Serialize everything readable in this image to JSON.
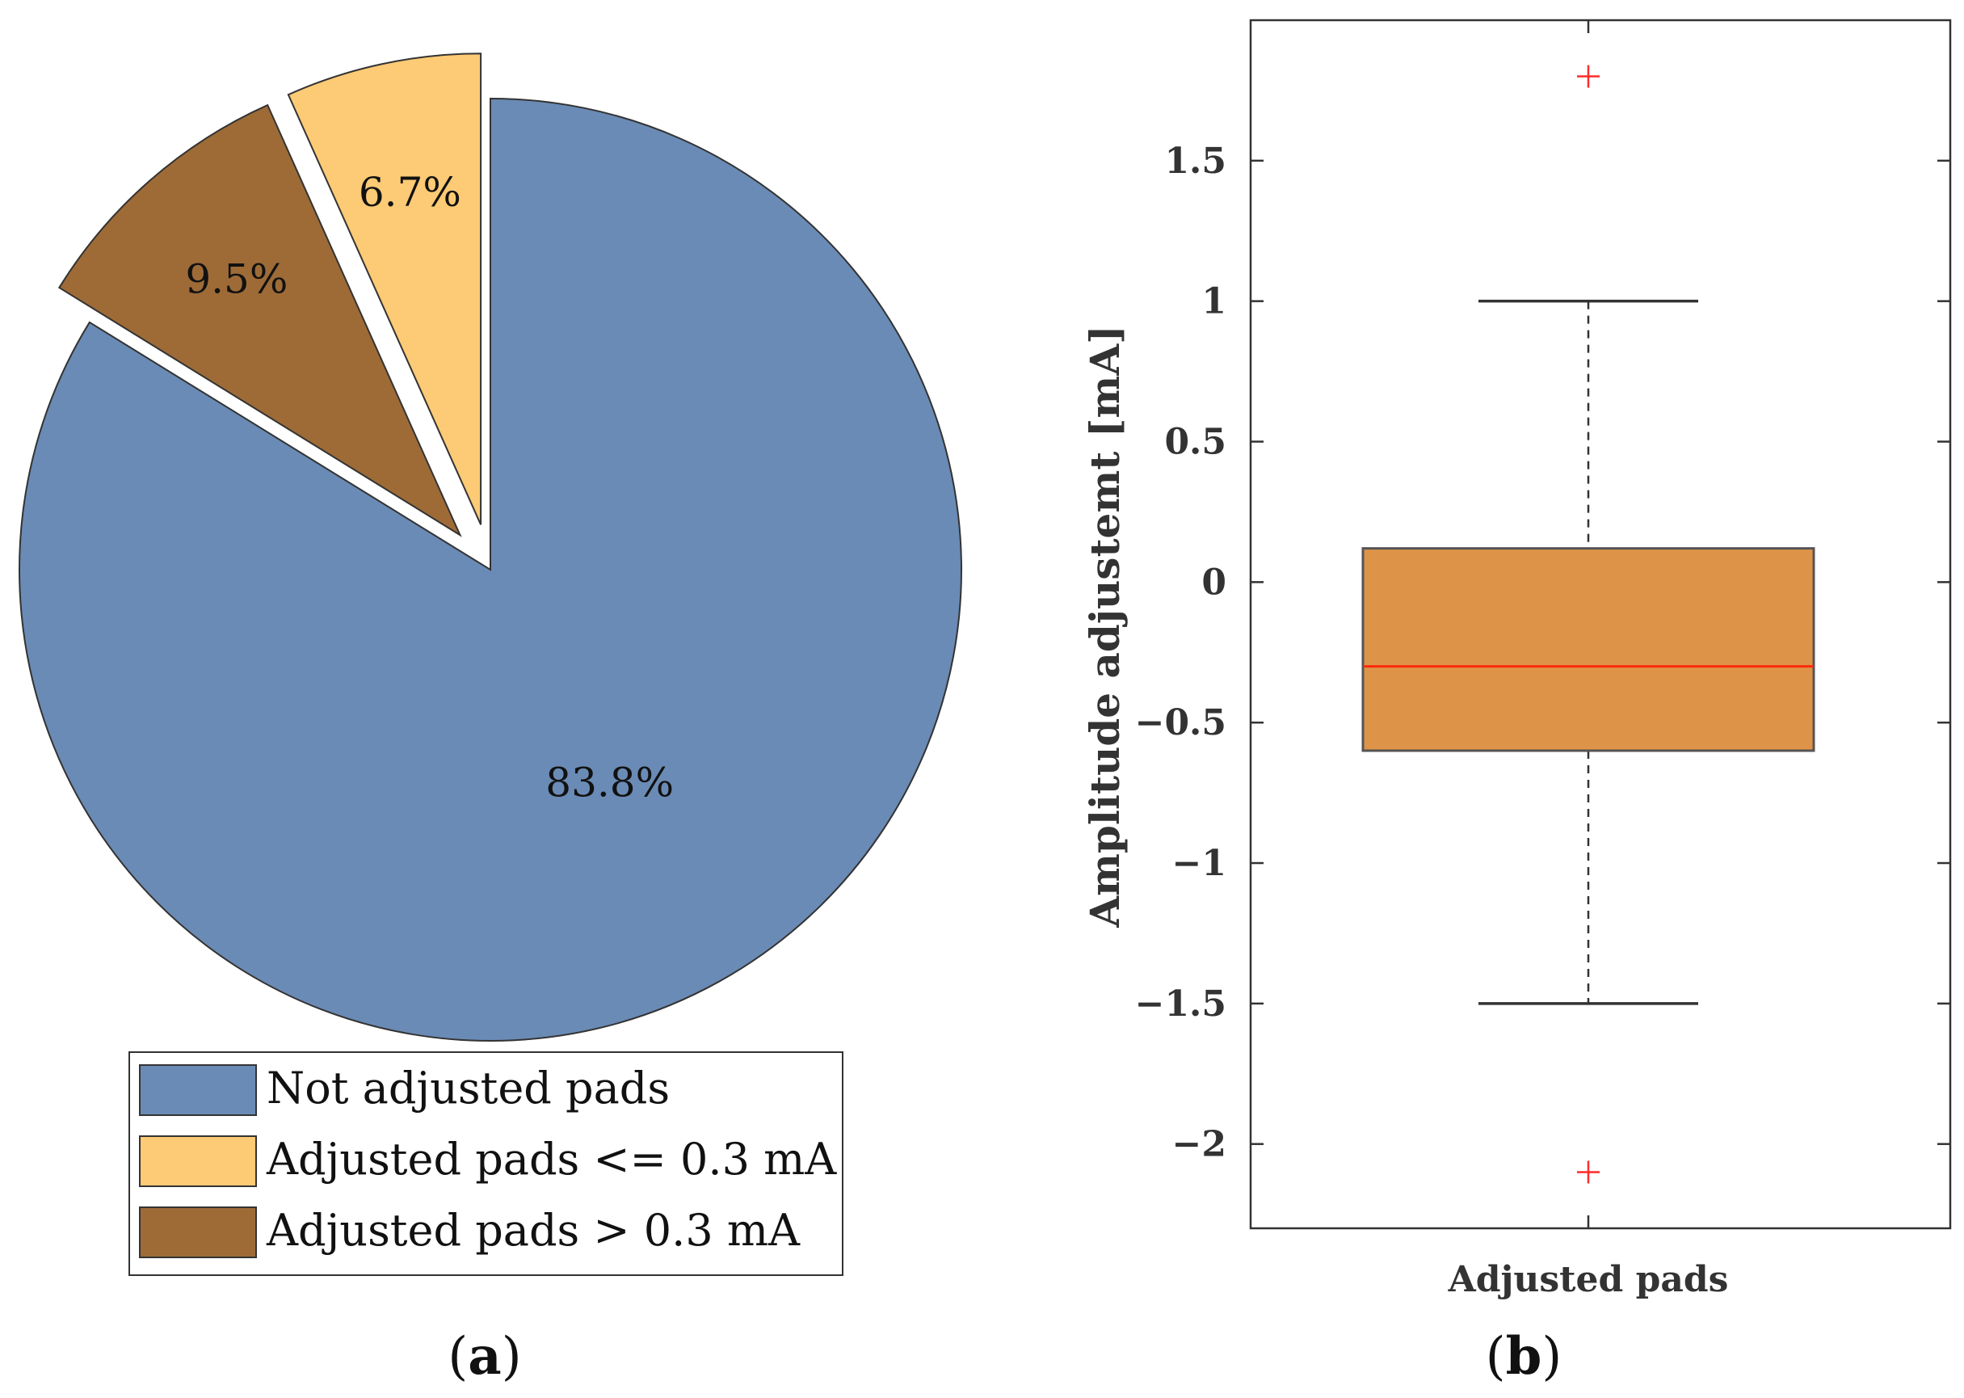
{
  "chart_data": [
    {
      "type": "pie",
      "panel_label": {
        "open": "(",
        "letter": "a",
        "close": ")"
      },
      "slices": [
        {
          "name": "Not adjusted pads",
          "value": 83.8,
          "label": "83.8%",
          "color": "#6a8bb5",
          "exploded": false
        },
        {
          "name": "Adjusted pads <= 0.3 mA",
          "value": 6.7,
          "label": "6.7%",
          "color": "#fdca75",
          "exploded": true
        },
        {
          "name": "Adjusted pads > 0.3 mA",
          "value": 9.5,
          "label": "9.5%",
          "color": "#9e6b37",
          "exploded": true
        }
      ],
      "legend": [
        "Not adjusted pads",
        "Adjusted pads <= 0.3 mA",
        "Adjusted pads > 0.3 mA"
      ],
      "legend_position": "bottom"
    },
    {
      "type": "box",
      "panel_label": {
        "open": "(",
        "letter": "b",
        "close": ")"
      },
      "category": "Adjusted pads",
      "ylabel": "Amplitude adjustemt [mA]",
      "ylim": [
        -2.3,
        2.0
      ],
      "yticks": [
        -2,
        -1.5,
        -1,
        -0.5,
        0,
        0.5,
        1,
        1.5
      ],
      "ytick_labels": [
        "−2",
        "−1.5",
        "−1",
        "−0.5",
        "0",
        "0.5",
        "1",
        "1.5"
      ],
      "stats": {
        "whisker_low": -1.5,
        "q1": -0.6,
        "median": -0.3,
        "q3": 0.12,
        "whisker_high": 1.0
      },
      "outliers": [
        1.8,
        -2.1
      ],
      "colors": {
        "box": "#de9448",
        "median": "#ff2a0a",
        "outlier": "#ff2a2a",
        "axis": "#333333"
      }
    }
  ]
}
